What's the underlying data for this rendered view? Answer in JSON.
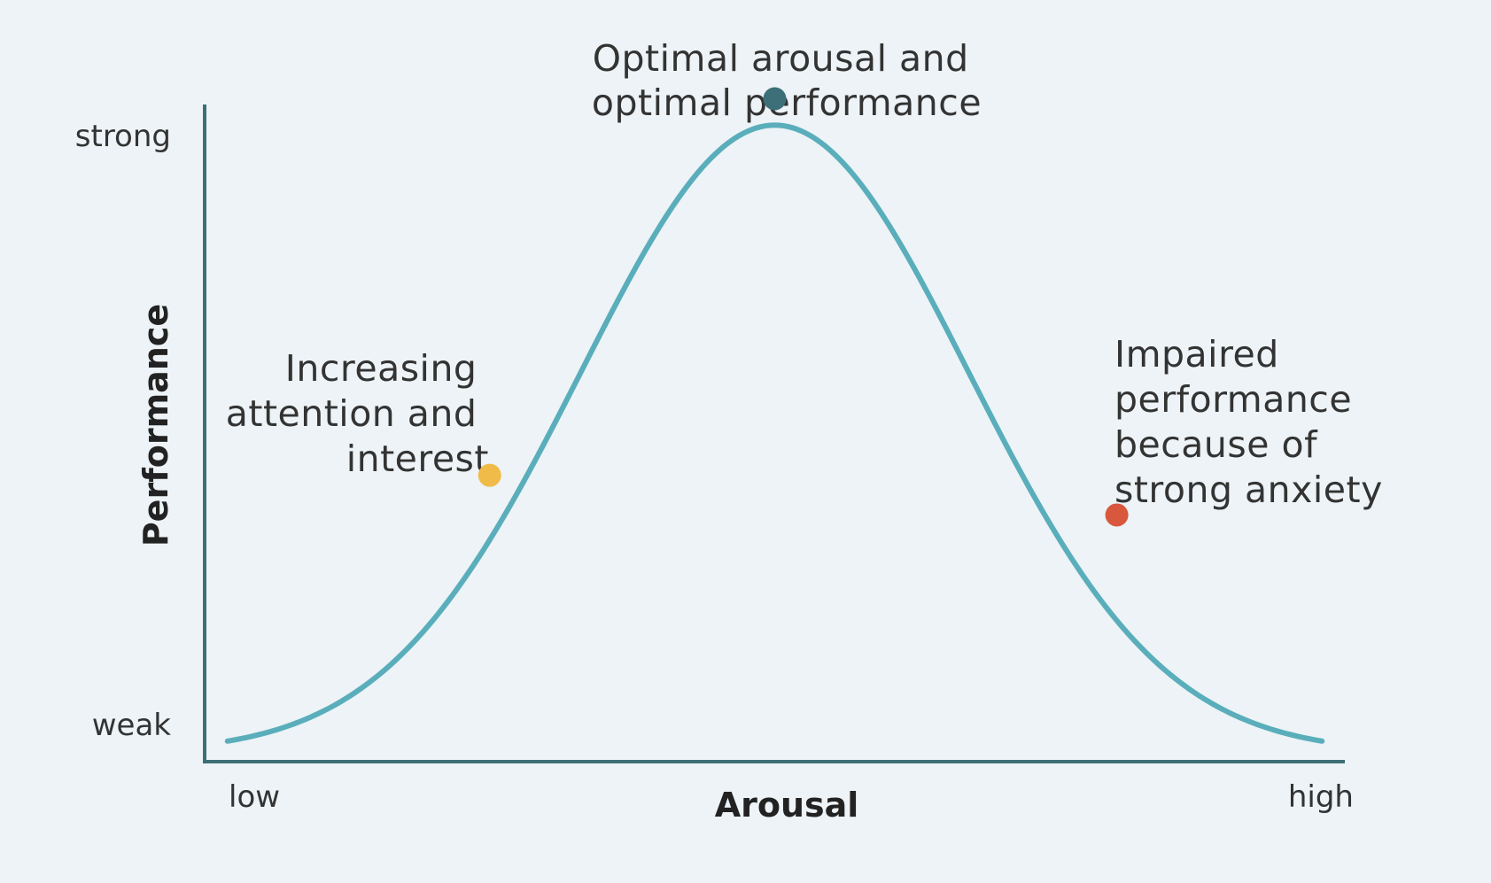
{
  "chart_data": {
    "type": "line",
    "title": "",
    "xlabel": "Arousal",
    "ylabel": "Performance",
    "x_tick_labels": {
      "low": "low",
      "high": "high"
    },
    "y_tick_labels": {
      "strong": "strong",
      "weak": "weak"
    },
    "xlim": [
      0,
      1
    ],
    "ylim": [
      0,
      1
    ],
    "grid": false,
    "series": [
      {
        "name": "Performance curve",
        "shape": "bell",
        "peak_x": 0.5,
        "peak_y": 0.95,
        "sigma": 0.17,
        "x_range": [
          0.02,
          0.98
        ],
        "color": "#5aaebb"
      }
    ],
    "annotations": [
      {
        "id": "optimal",
        "lines": [
          "Optimal arousal and",
          "optimal performance"
        ],
        "point": {
          "x": 0.5,
          "y": 0.99
        },
        "color": "#3d6f78"
      },
      {
        "id": "increasing",
        "lines": [
          "Increasing",
          "attention and",
          "interest"
        ],
        "point": {
          "x": 0.25,
          "y": 0.42
        },
        "color": "#f0bb48"
      },
      {
        "id": "impaired",
        "lines": [
          "Impaired",
          "performance",
          "because of",
          "strong anxiety"
        ],
        "point": {
          "x": 0.8,
          "y": 0.36
        },
        "color": "#d9573d"
      }
    ]
  },
  "colors": {
    "background": "#edf3f6",
    "axis": "#3d6f78",
    "curve": "#5aaebb",
    "text": "#333333"
  }
}
